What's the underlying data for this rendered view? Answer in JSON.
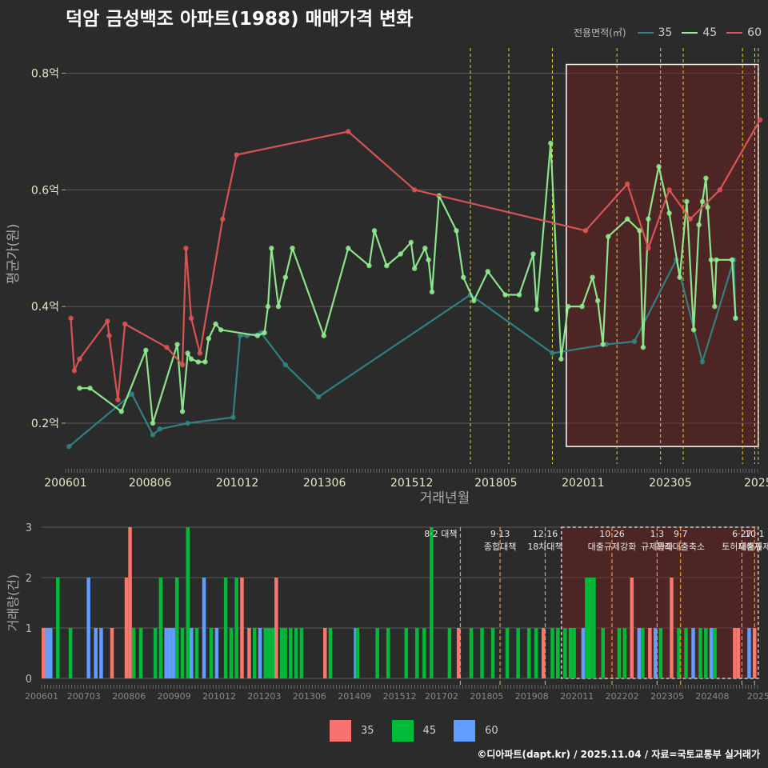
{
  "title": "덕암 금성백조 아파트(1988) 매매가격 변화",
  "legend": {
    "title": "전용면적(㎡)",
    "series": [
      {
        "name": "35",
        "line_color": "#2e8587",
        "bar_color": "#f8766d"
      },
      {
        "name": "45",
        "line_color": "#90ee90",
        "bar_color": "#00ba38"
      },
      {
        "name": "60",
        "line_color": "#e05555",
        "bar_color": "#619cff"
      }
    ]
  },
  "footer": "©디아파트(dapt.kr) / 2025.11.04 / 자료=국토교통부 실거래가",
  "chart_data": [
    {
      "type": "line",
      "title": "덕암 금성백조 아파트(1988) 매매가격 변화",
      "xlabel": "거래년월",
      "ylabel": "평균가(원)",
      "xlim": [
        2006.0,
        2025.9
      ],
      "ylim": [
        0.13,
        0.85
      ],
      "x_ticks": [
        "200601",
        "200806",
        "201012",
        "201306",
        "201512",
        "201805",
        "202011",
        "202305",
        "2025"
      ],
      "x_tick_values": [
        2006.0,
        2008.42,
        2010.92,
        2013.42,
        2015.92,
        2018.33,
        2020.83,
        2023.33,
        2025.85
      ],
      "y_ticks": [
        "0.2억",
        "0.4억",
        "0.6억",
        "0.8억"
      ],
      "y_tick_values": [
        0.2,
        0.4,
        0.6,
        0.8
      ],
      "highlight_range": [
        2020.35,
        2025.85
      ],
      "policy_lines": [
        2017.6,
        2018.7,
        2019.95,
        2021.8,
        2023.05,
        2023.7,
        2025.4,
        2025.75,
        2025.85
      ],
      "series": [
        {
          "name": "35",
          "x": [
            2006.1,
            2007.9,
            2008.5,
            2008.7,
            2009.5,
            2010.8,
            2011.0,
            2011.2,
            2011.6,
            2012.3,
            2013.25,
            2017.6,
            2019.95,
            2021.5,
            2022.3,
            2023.5,
            2024.25,
            2025.15,
            2025.2
          ],
          "y": [
            0.16,
            0.25,
            0.18,
            0.19,
            0.2,
            0.21,
            0.35,
            0.35,
            0.355,
            0.3,
            0.245,
            0.42,
            0.32,
            0.335,
            0.34,
            0.48,
            0.305,
            0.48,
            0.38
          ]
        },
        {
          "name": "45",
          "x": [
            2006.4,
            2006.7,
            2007.6,
            2008.3,
            2008.5,
            2009.2,
            2009.35,
            2009.5,
            2009.6,
            2009.8,
            2010.0,
            2010.1,
            2010.3,
            2010.45,
            2011.5,
            2011.7,
            2011.8,
            2011.9,
            2012.1,
            2012.3,
            2012.5,
            2013.4,
            2014.1,
            2014.7,
            2014.85,
            2015.2,
            2015.6,
            2015.9,
            2016.0,
            2016.3,
            2016.4,
            2016.5,
            2016.7,
            2017.2,
            2017.4,
            2017.7,
            2018.1,
            2018.6,
            2019.0,
            2019.4,
            2019.5,
            2019.9,
            2020.2,
            2020.4,
            2020.8,
            2021.1,
            2021.25,
            2021.4,
            2021.55,
            2022.1,
            2022.45,
            2022.55,
            2022.7,
            2023.0,
            2023.3,
            2023.6,
            2023.8,
            2024.0,
            2024.15,
            2024.25,
            2024.35,
            2024.4,
            2024.5,
            2024.6,
            2024.65,
            2025.1,
            2025.2
          ],
          "y": [
            0.26,
            0.26,
            0.22,
            0.325,
            0.2,
            0.335,
            0.22,
            0.32,
            0.31,
            0.305,
            0.305,
            0.345,
            0.37,
            0.36,
            0.35,
            0.355,
            0.4,
            0.5,
            0.4,
            0.45,
            0.5,
            0.35,
            0.5,
            0.47,
            0.53,
            0.47,
            0.49,
            0.51,
            0.465,
            0.5,
            0.48,
            0.425,
            0.59,
            0.53,
            0.45,
            0.41,
            0.46,
            0.42,
            0.42,
            0.49,
            0.395,
            0.68,
            0.31,
            0.4,
            0.4,
            0.45,
            0.41,
            0.335,
            0.52,
            0.55,
            0.53,
            0.33,
            0.55,
            0.64,
            0.56,
            0.45,
            0.58,
            0.36,
            0.54,
            0.58,
            0.62,
            0.57,
            0.48,
            0.4,
            0.48,
            0.48,
            0.38
          ]
        },
        {
          "name": "60",
          "x": [
            2006.15,
            2006.25,
            2006.4,
            2007.2,
            2007.25,
            2007.5,
            2007.7,
            2008.9,
            2009.35,
            2009.45,
            2009.6,
            2009.85,
            2010.5,
            2010.9,
            2014.1,
            2016.0,
            2020.9,
            2022.1,
            2022.7,
            2023.3,
            2023.9,
            2024.75,
            2025.9
          ],
          "y": [
            0.38,
            0.29,
            0.31,
            0.375,
            0.35,
            0.24,
            0.37,
            0.33,
            0.3,
            0.5,
            0.38,
            0.32,
            0.55,
            0.66,
            0.7,
            0.6,
            0.53,
            0.61,
            0.5,
            0.6,
            0.55,
            0.6,
            0.72
          ]
        }
      ]
    },
    {
      "type": "bar",
      "ylabel": "거래량(건)",
      "ylim": [
        0,
        3
      ],
      "y_ticks": [
        "0",
        "1",
        "2",
        "3"
      ],
      "x_ticks": [
        "200601",
        "200703",
        "200806",
        "200909",
        "201012",
        "201203",
        "201306",
        "201409",
        "201512",
        "201702",
        "201805",
        "201908",
        "202011",
        "202202",
        "202305",
        "202408",
        "2025"
      ],
      "x_tick_values": [
        2006.0,
        2007.17,
        2008.42,
        2009.67,
        2010.92,
        2012.17,
        2013.42,
        2014.67,
        2015.92,
        2017.08,
        2018.33,
        2019.58,
        2020.83,
        2022.08,
        2023.33,
        2024.58,
        2025.85
      ],
      "highlight_range": [
        2020.4,
        2025.85
      ],
      "bars": [
        {
          "x": 2006.05,
          "series": "35",
          "v": 1
        },
        {
          "x": 2006.15,
          "series": "60",
          "v": 1
        },
        {
          "x": 2006.25,
          "series": "60",
          "v": 1
        },
        {
          "x": 2006.45,
          "series": "45",
          "v": 2
        },
        {
          "x": 2006.8,
          "series": "45",
          "v": 1
        },
        {
          "x": 2007.3,
          "series": "60",
          "v": 2
        },
        {
          "x": 2007.5,
          "series": "60",
          "v": 1
        },
        {
          "x": 2007.65,
          "series": "60",
          "v": 1
        },
        {
          "x": 2007.95,
          "series": "35",
          "v": 1
        },
        {
          "x": 2008.35,
          "series": "35",
          "v": 2
        },
        {
          "x": 2008.45,
          "series": "35",
          "v": 3
        },
        {
          "x": 2008.55,
          "series": "45",
          "v": 1
        },
        {
          "x": 2008.75,
          "series": "45",
          "v": 1
        },
        {
          "x": 2009.15,
          "series": "45",
          "v": 1
        },
        {
          "x": 2009.3,
          "series": "45",
          "v": 2
        },
        {
          "x": 2009.45,
          "series": "60",
          "v": 1
        },
        {
          "x": 2009.55,
          "series": "60",
          "v": 1
        },
        {
          "x": 2009.65,
          "series": "60",
          "v": 1
        },
        {
          "x": 2009.75,
          "series": "45",
          "v": 2
        },
        {
          "x": 2009.9,
          "series": "45",
          "v": 1
        },
        {
          "x": 2010.05,
          "series": "45",
          "v": 3
        },
        {
          "x": 2010.15,
          "series": "60",
          "v": 1
        },
        {
          "x": 2010.3,
          "series": "45",
          "v": 1
        },
        {
          "x": 2010.5,
          "series": "60",
          "v": 2
        },
        {
          "x": 2010.7,
          "series": "45",
          "v": 1
        },
        {
          "x": 2010.85,
          "series": "60",
          "v": 1
        },
        {
          "x": 2011.1,
          "series": "45",
          "v": 2
        },
        {
          "x": 2011.25,
          "series": "45",
          "v": 1
        },
        {
          "x": 2011.4,
          "series": "45",
          "v": 2
        },
        {
          "x": 2011.55,
          "series": "35",
          "v": 2
        },
        {
          "x": 2011.75,
          "series": "35",
          "v": 1
        },
        {
          "x": 2011.9,
          "series": "45",
          "v": 1
        },
        {
          "x": 2012.05,
          "series": "60",
          "v": 1
        },
        {
          "x": 2012.2,
          "series": "45",
          "v": 1
        },
        {
          "x": 2012.3,
          "series": "45",
          "v": 1
        },
        {
          "x": 2012.4,
          "series": "45",
          "v": 1
        },
        {
          "x": 2012.5,
          "series": "35",
          "v": 2
        },
        {
          "x": 2012.65,
          "series": "45",
          "v": 1
        },
        {
          "x": 2012.75,
          "series": "45",
          "v": 1
        },
        {
          "x": 2012.9,
          "series": "45",
          "v": 1
        },
        {
          "x": 2013.05,
          "series": "45",
          "v": 1
        },
        {
          "x": 2013.2,
          "series": "45",
          "v": 1
        },
        {
          "x": 2013.85,
          "series": "35",
          "v": 1
        },
        {
          "x": 2014.0,
          "series": "45",
          "v": 1
        },
        {
          "x": 2014.7,
          "series": "60",
          "v": 1
        },
        {
          "x": 2014.75,
          "series": "45",
          "v": 1
        },
        {
          "x": 2015.3,
          "series": "45",
          "v": 1
        },
        {
          "x": 2015.6,
          "series": "45",
          "v": 1
        },
        {
          "x": 2016.1,
          "series": "45",
          "v": 1
        },
        {
          "x": 2016.4,
          "series": "45",
          "v": 1
        },
        {
          "x": 2016.6,
          "series": "45",
          "v": 1
        },
        {
          "x": 2016.8,
          "series": "45",
          "v": 3
        },
        {
          "x": 2017.3,
          "series": "45",
          "v": 1
        },
        {
          "x": 2017.55,
          "series": "35",
          "v": 1
        },
        {
          "x": 2017.9,
          "series": "45",
          "v": 1
        },
        {
          "x": 2018.2,
          "series": "45",
          "v": 1
        },
        {
          "x": 2018.5,
          "series": "45",
          "v": 1
        },
        {
          "x": 2018.9,
          "series": "45",
          "v": 1
        },
        {
          "x": 2019.2,
          "series": "45",
          "v": 1
        },
        {
          "x": 2019.5,
          "series": "45",
          "v": 1
        },
        {
          "x": 2019.7,
          "series": "45",
          "v": 1
        },
        {
          "x": 2019.9,
          "series": "35",
          "v": 1
        },
        {
          "x": 2020.15,
          "series": "45",
          "v": 1
        },
        {
          "x": 2020.3,
          "series": "45",
          "v": 1
        },
        {
          "x": 2020.5,
          "series": "45",
          "v": 1
        },
        {
          "x": 2020.65,
          "series": "45",
          "v": 1
        },
        {
          "x": 2020.75,
          "series": "45",
          "v": 1
        },
        {
          "x": 2021.0,
          "series": "60",
          "v": 1
        },
        {
          "x": 2021.1,
          "series": "45",
          "v": 2
        },
        {
          "x": 2021.2,
          "series": "45",
          "v": 2
        },
        {
          "x": 2021.3,
          "series": "45",
          "v": 2
        },
        {
          "x": 2021.55,
          "series": "45",
          "v": 1
        },
        {
          "x": 2022.0,
          "series": "45",
          "v": 1
        },
        {
          "x": 2022.15,
          "series": "45",
          "v": 1
        },
        {
          "x": 2022.35,
          "series": "35",
          "v": 2
        },
        {
          "x": 2022.55,
          "series": "60",
          "v": 1
        },
        {
          "x": 2022.65,
          "series": "45",
          "v": 1
        },
        {
          "x": 2022.85,
          "series": "35",
          "v": 1
        },
        {
          "x": 2023.0,
          "series": "60",
          "v": 1
        },
        {
          "x": 2023.15,
          "series": "45",
          "v": 1
        },
        {
          "x": 2023.45,
          "series": "35",
          "v": 2
        },
        {
          "x": 2023.65,
          "series": "45",
          "v": 1
        },
        {
          "x": 2023.85,
          "series": "45",
          "v": 1
        },
        {
          "x": 2024.05,
          "series": "60",
          "v": 1
        },
        {
          "x": 2024.25,
          "series": "45",
          "v": 1
        },
        {
          "x": 2024.4,
          "series": "45",
          "v": 1
        },
        {
          "x": 2024.55,
          "series": "60",
          "v": 1
        },
        {
          "x": 2024.65,
          "series": "45",
          "v": 1
        },
        {
          "x": 2025.2,
          "series": "35",
          "v": 1
        },
        {
          "x": 2025.3,
          "series": "35",
          "v": 1
        },
        {
          "x": 2025.6,
          "series": "60",
          "v": 1
        },
        {
          "x": 2025.75,
          "series": "35",
          "v": 1
        }
      ],
      "policy_labels": [
        {
          "x": 2017.6,
          "lines": [
            "8·2 대책"
          ],
          "anchor": "end"
        },
        {
          "x": 2018.7,
          "lines": [
            "9·13",
            "종합대책"
          ],
          "anchor": "middle"
        },
        {
          "x": 2019.95,
          "lines": [
            "12·16",
            "18차대책"
          ],
          "anchor": "middle"
        },
        {
          "x": 2021.8,
          "lines": [
            "10·26",
            "대출규제강화"
          ],
          "anchor": "middle"
        },
        {
          "x": 2023.05,
          "lines": [
            "1·3",
            "규제완화"
          ],
          "anchor": "middle"
        },
        {
          "x": 2023.7,
          "lines": [
            "9·7",
            "특례대출축소"
          ],
          "anchor": "middle"
        },
        {
          "x": 2025.4,
          "lines": [
            "6·27",
            "토허제해제"
          ],
          "anchor": "middle"
        },
        {
          "x": 2025.75,
          "lines": [
            "10·1",
            "대출규제"
          ],
          "anchor": "middle"
        }
      ]
    }
  ]
}
